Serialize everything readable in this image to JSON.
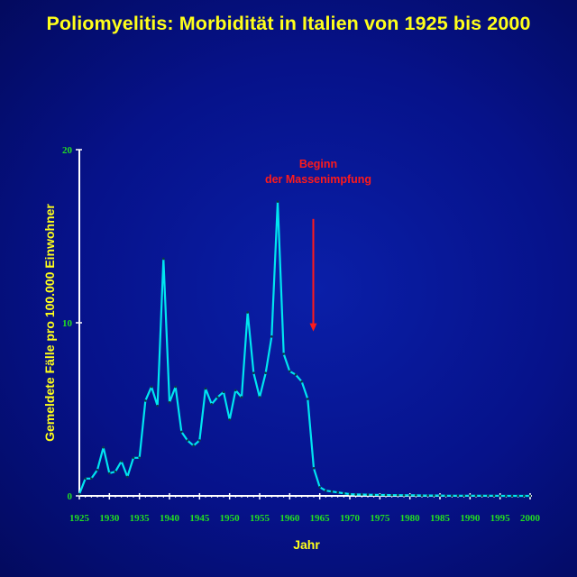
{
  "colors": {
    "title": "#ffff1a",
    "axis_labels": "#ffff1a",
    "ticks": "#22dd22",
    "line": "#00e5f0",
    "annotation": "#ff1a1a",
    "axis": "#ffffff"
  },
  "chart_data": {
    "type": "line",
    "title": "Poliomyelitis: Morbidität in Italien von 1925 bis 2000",
    "xlabel": "Jahr",
    "ylabel": "Gemeldete Fälle pro 100.000 Einwohner",
    "xlim": [
      1925,
      2000
    ],
    "ylim": [
      0,
      20
    ],
    "x_ticks": [
      "1925",
      "1930",
      "1935",
      "1940",
      "1945",
      "1950",
      "1955",
      "1960",
      "1965",
      "1970",
      "1975",
      "1980",
      "1985",
      "1990",
      "1995",
      "2000"
    ],
    "y_ticks": [
      "0",
      "10",
      "20"
    ],
    "grid": false,
    "annotation": {
      "lines": [
        "Beginn",
        "der Massenimpfung"
      ],
      "x": 1964,
      "arrow_from": 16,
      "arrow_to": 9.5
    },
    "series": [
      {
        "x": [
          1925,
          1926,
          1927,
          1928,
          1929,
          1930,
          1931,
          1932,
          1933,
          1934,
          1935,
          1936,
          1937,
          1938,
          1939,
          1940,
          1941,
          1942,
          1943,
          1944,
          1945,
          1946,
          1947,
          1948,
          1949,
          1950,
          1951,
          1952,
          1953,
          1954,
          1955,
          1956,
          1957,
          1958,
          1959,
          1960,
          1961,
          1962,
          1963,
          1964,
          1965,
          1966,
          1967,
          1968,
          1969,
          1970,
          1971,
          1972,
          1973,
          1974,
          1975,
          1976,
          1977,
          1978,
          1979,
          1980,
          1981,
          1982,
          1983,
          1984,
          1985,
          1986,
          1987,
          1988,
          1989,
          1990,
          1991,
          1992,
          1993,
          1994,
          1995,
          1996,
          1997,
          1998,
          1999,
          2000
        ],
        "values": [
          0.1,
          1.0,
          1.0,
          1.5,
          2.8,
          1.3,
          1.4,
          2.0,
          1.1,
          2.2,
          2.2,
          5.5,
          6.3,
          5.2,
          13.7,
          5.4,
          6.3,
          3.7,
          3.2,
          2.9,
          3.2,
          6.2,
          5.3,
          5.7,
          6.0,
          4.4,
          6.1,
          5.7,
          10.6,
          7.1,
          5.7,
          7.1,
          9.2,
          17.0,
          8.2,
          7.2,
          7.0,
          6.6,
          5.6,
          1.6,
          0.5,
          0.3,
          0.25,
          0.2,
          0.15,
          0.1,
          0.08,
          0.08,
          0.07,
          0.06,
          0.05,
          0.05,
          0.04,
          0.04,
          0.03,
          0.03,
          0.03,
          0.02,
          0.02,
          0.02,
          0.02,
          0.01,
          0.01,
          0.01,
          0.01,
          0.01,
          0.01,
          0.01,
          0.01,
          0.01,
          0.0,
          0.0,
          0.0,
          0.0,
          0.0,
          0.0
        ]
      }
    ]
  }
}
